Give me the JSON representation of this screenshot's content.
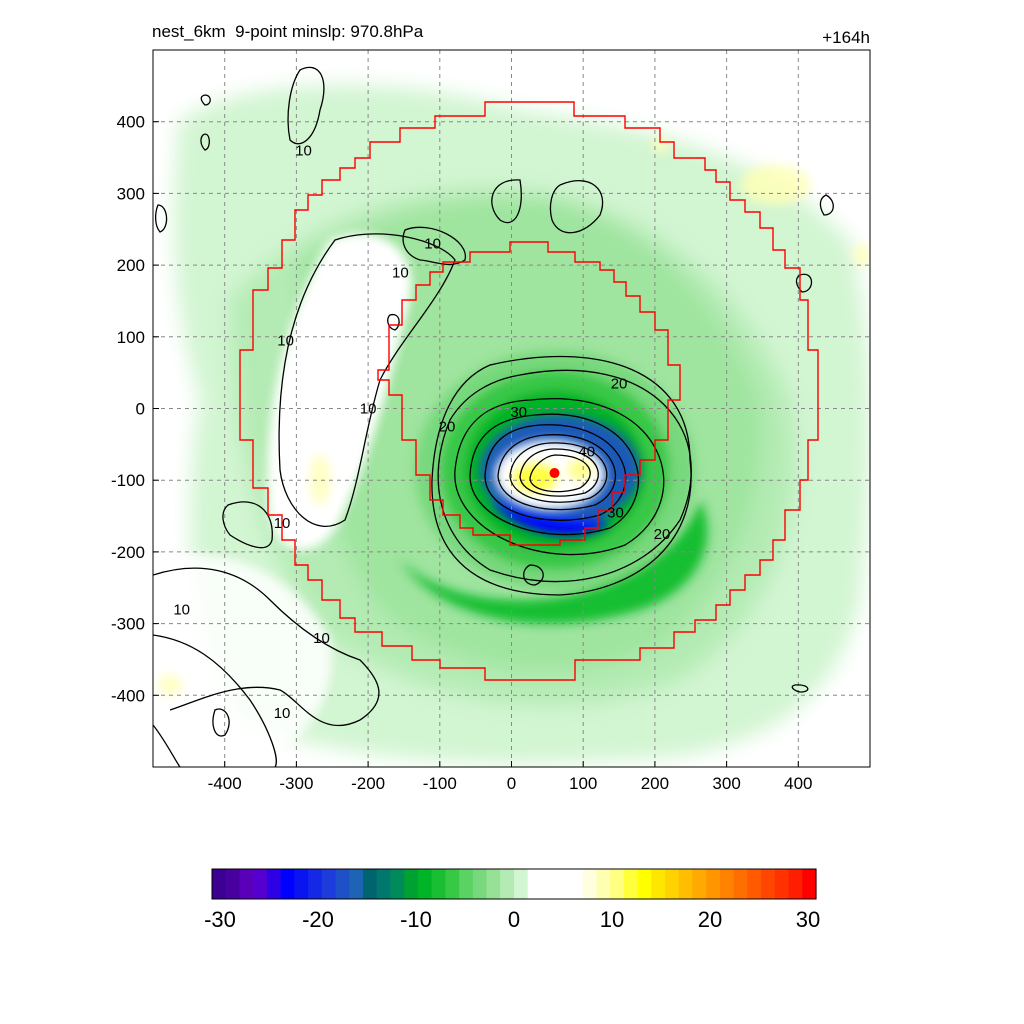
{
  "figure": {
    "title_left": "nest_6km  9-point minslp: 970.8hPa",
    "title_right": "+164h"
  },
  "chart_data": {
    "type": "heatmap",
    "title": "nest_6km  9-point minslp: 970.8hPa",
    "forecast_hour": "+164h",
    "xlim": [
      -500,
      500
    ],
    "ylim": [
      -500,
      500
    ],
    "x_ticks": [
      -400,
      -300,
      -200,
      -100,
      0,
      100,
      200,
      300,
      400
    ],
    "y_ticks": [
      -400,
      -300,
      -200,
      -100,
      0,
      100,
      200,
      300,
      400
    ],
    "grid": true,
    "grid_style": "dashed",
    "storm_center": {
      "x": 60,
      "y": -90,
      "color": "#ff0000"
    },
    "inner_box_red": {
      "xmin": -180,
      "xmax": 220,
      "ymin": -180,
      "ymax": 230
    },
    "outer_box_red": {
      "xmin": -380,
      "xmax": 430,
      "ymin": -380,
      "ymax": 430
    },
    "contour_labels": [
      {
        "text": "10",
        "x": -290,
        "y": 360
      },
      {
        "text": "10",
        "x": -155,
        "y": 190
      },
      {
        "text": "10",
        "x": -110,
        "y": 230
      },
      {
        "text": "10",
        "x": -315,
        "y": 95
      },
      {
        "text": "10",
        "x": -200,
        "y": 0
      },
      {
        "text": "10",
        "x": -320,
        "y": -160
      },
      {
        "text": "10",
        "x": -460,
        "y": -280
      },
      {
        "text": "10",
        "x": -265,
        "y": -320
      },
      {
        "text": "10",
        "x": -320,
        "y": -425
      },
      {
        "text": "20",
        "x": -90,
        "y": -25
      },
      {
        "text": "20",
        "x": 150,
        "y": 35
      },
      {
        "text": "20",
        "x": 210,
        "y": -175
      },
      {
        "text": "30",
        "x": 10,
        "y": -5
      },
      {
        "text": "30",
        "x": 145,
        "y": -145
      },
      {
        "text": "40",
        "x": 105,
        "y": -60
      }
    ],
    "colorbar": {
      "min": -30,
      "max": 30,
      "tick_labels": [
        "-30",
        "-20",
        "-10",
        "0",
        "10",
        "20",
        "30"
      ],
      "colors": [
        "#3c0093",
        "#48009f",
        "#5a00b8",
        "#5500d0",
        "#2d00e6",
        "#0000ff",
        "#0a14f0",
        "#1428e6",
        "#1e3cdc",
        "#1e50c8",
        "#1e64b4",
        "#00646e",
        "#00786e",
        "#008c5a",
        "#00a032",
        "#00b428",
        "#19be32",
        "#37c846",
        "#5ad264",
        "#78d87d",
        "#96e196",
        "#b4ebb4",
        "#d2f5d2",
        "#ffffff",
        "#ffffff",
        "#ffffff",
        "#ffffff",
        "#ffffe0",
        "#ffffb4",
        "#ffff82",
        "#ffff3c",
        "#ffff00",
        "#ffe600",
        "#ffd200",
        "#ffbe00",
        "#ffaa00",
        "#ff9600",
        "#ff8200",
        "#ff6e00",
        "#ff5a00",
        "#ff4600",
        "#ff3200",
        "#ff1e00",
        "#ff0000"
      ]
    }
  }
}
